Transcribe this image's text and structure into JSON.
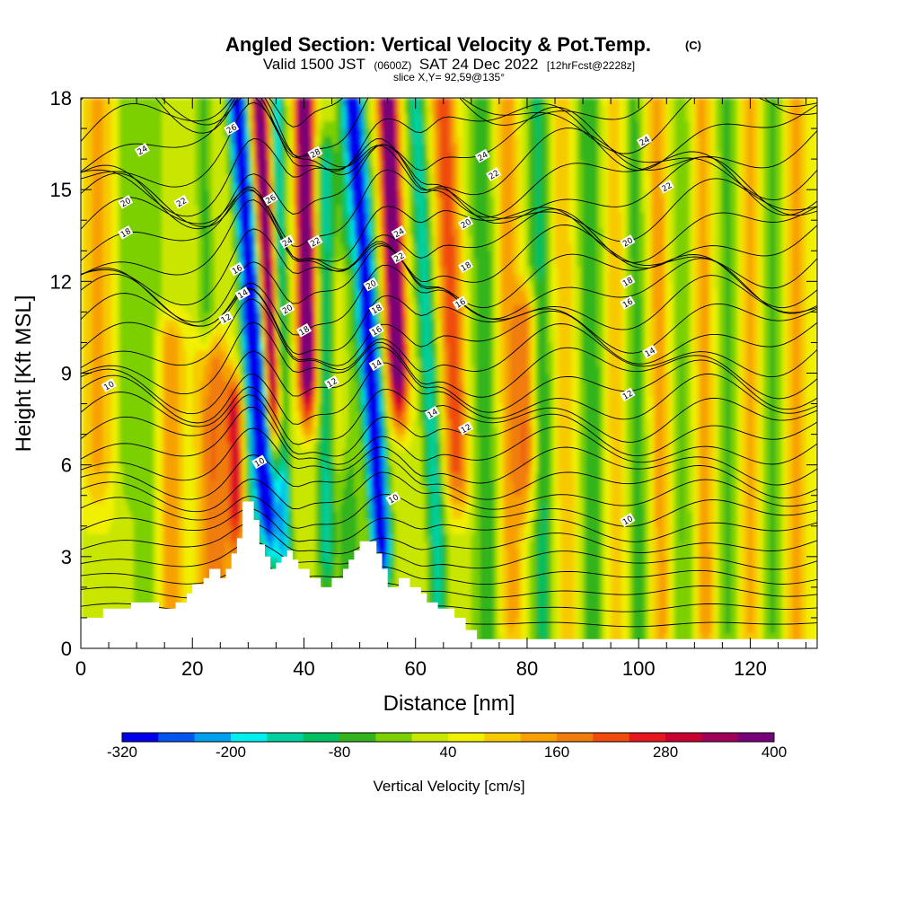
{
  "chart_data": {
    "type": "heatmap",
    "title": "Angled Section: Vertical Velocity & Pot.Temp.",
    "title_units": "(C)",
    "subtitle_parts": [
      "Valid 1500 JST",
      "(0600Z)",
      "SAT 24 Dec 2022",
      "[12hrFcst@2228z]"
    ],
    "slice_label": "slice X,Y= 92,59@135°",
    "xlabel": "Distance [nm]",
    "ylabel": "Height [Kft MSL]",
    "xlim": [
      0,
      132
    ],
    "ylim": [
      0,
      18
    ],
    "x_ticks": [
      0,
      20,
      40,
      60,
      80,
      100,
      120
    ],
    "y_ticks": [
      0,
      3,
      6,
      9,
      12,
      15,
      18
    ],
    "colorbar": {
      "label": "Vertical Velocity [cm/s]",
      "min": -320,
      "max": 400,
      "step": 40,
      "tick_values": [
        -320,
        -200,
        -80,
        40,
        160,
        280,
        400
      ],
      "colors": [
        "#0000ee",
        "#0055ee",
        "#00a0ee",
        "#00eeee",
        "#00d0a0",
        "#00c060",
        "#33b41e",
        "#7cd000",
        "#c8e600",
        "#f0f000",
        "#f7ca00",
        "#f7a000",
        "#f07d0a",
        "#f04b0a",
        "#e6161e",
        "#c80032",
        "#a0005a",
        "#780078"
      ]
    },
    "terrain": [
      [
        0,
        1.0
      ],
      [
        4,
        1.0
      ],
      [
        4,
        1.3
      ],
      [
        9,
        1.3
      ],
      [
        9,
        1.5
      ],
      [
        14,
        1.5
      ],
      [
        14,
        1.3
      ],
      [
        17,
        1.3
      ],
      [
        17,
        1.5
      ],
      [
        19,
        1.5
      ],
      [
        19,
        1.8
      ],
      [
        20,
        1.8
      ],
      [
        20,
        2.1
      ],
      [
        22,
        2.1
      ],
      [
        22,
        2.3
      ],
      [
        23,
        2.3
      ],
      [
        23,
        2.6
      ],
      [
        25,
        2.6
      ],
      [
        25,
        2.3
      ],
      [
        26,
        2.3
      ],
      [
        26,
        2.6
      ],
      [
        27,
        2.6
      ],
      [
        27,
        3.1
      ],
      [
        28,
        3.1
      ],
      [
        28,
        3.6
      ],
      [
        29,
        3.6
      ],
      [
        29,
        4.8
      ],
      [
        31,
        4.8
      ],
      [
        31,
        4.2
      ],
      [
        32,
        4.2
      ],
      [
        32,
        3.4
      ],
      [
        33,
        3.4
      ],
      [
        33,
        3.0
      ],
      [
        34,
        3.0
      ],
      [
        34,
        2.6
      ],
      [
        35,
        2.6
      ],
      [
        35,
        2.8
      ],
      [
        36,
        2.8
      ],
      [
        36,
        3.0
      ],
      [
        37,
        3.0
      ],
      [
        37,
        3.2
      ],
      [
        38,
        3.2
      ],
      [
        38,
        2.9
      ],
      [
        39,
        2.9
      ],
      [
        39,
        2.6
      ],
      [
        41,
        2.6
      ],
      [
        41,
        2.3
      ],
      [
        43,
        2.3
      ],
      [
        43,
        2.0
      ],
      [
        45,
        2.0
      ],
      [
        45,
        2.3
      ],
      [
        47,
        2.3
      ],
      [
        47,
        2.6
      ],
      [
        48,
        2.6
      ],
      [
        48,
        2.9
      ],
      [
        49,
        2.9
      ],
      [
        49,
        3.2
      ],
      [
        50,
        3.2
      ],
      [
        50,
        3.5
      ],
      [
        53,
        3.5
      ],
      [
        53,
        3.1
      ],
      [
        54,
        3.1
      ],
      [
        54,
        2.6
      ],
      [
        55,
        2.6
      ],
      [
        55,
        2.0
      ],
      [
        57,
        2.0
      ],
      [
        57,
        2.3
      ],
      [
        59,
        2.3
      ],
      [
        59,
        2.0
      ],
      [
        61,
        2.0
      ],
      [
        61,
        1.8
      ],
      [
        62,
        1.8
      ],
      [
        62,
        1.5
      ],
      [
        64,
        1.5
      ],
      [
        64,
        1.3
      ],
      [
        67,
        1.3
      ],
      [
        67,
        1.0
      ],
      [
        69,
        1.0
      ],
      [
        69,
        0.6
      ],
      [
        71,
        0.6
      ],
      [
        71,
        0.3
      ],
      [
        132,
        0.3
      ]
    ],
    "theta_labels": [
      {
        "text": "26",
        "x": 27,
        "y": 17.0
      },
      {
        "text": "24",
        "x": 11,
        "y": 16.3
      },
      {
        "text": "20",
        "x": 8,
        "y": 14.6
      },
      {
        "text": "22",
        "x": 18,
        "y": 14.6
      },
      {
        "text": "18",
        "x": 8,
        "y": 13.6
      },
      {
        "text": "16",
        "x": 28,
        "y": 12.4
      },
      {
        "text": "14",
        "x": 29,
        "y": 11.6
      },
      {
        "text": "12",
        "x": 26,
        "y": 10.8
      },
      {
        "text": "10",
        "x": 5,
        "y": 8.6
      },
      {
        "text": "26",
        "x": 34,
        "y": 14.7
      },
      {
        "text": "28",
        "x": 42,
        "y": 16.2
      },
      {
        "text": "24",
        "x": 37,
        "y": 13.3
      },
      {
        "text": "22",
        "x": 42,
        "y": 13.3
      },
      {
        "text": "20",
        "x": 37,
        "y": 11.1
      },
      {
        "text": "18",
        "x": 40,
        "y": 10.4
      },
      {
        "text": "12",
        "x": 45,
        "y": 8.7
      },
      {
        "text": "10",
        "x": 32,
        "y": 6.1
      },
      {
        "text": "24",
        "x": 57,
        "y": 13.6
      },
      {
        "text": "22",
        "x": 57,
        "y": 12.8
      },
      {
        "text": "20",
        "x": 52,
        "y": 11.9
      },
      {
        "text": "18",
        "x": 53,
        "y": 11.1
      },
      {
        "text": "16",
        "x": 53,
        "y": 10.4
      },
      {
        "text": "14",
        "x": 53,
        "y": 9.3
      },
      {
        "text": "10",
        "x": 56,
        "y": 4.9
      },
      {
        "text": "20",
        "x": 69,
        "y": 13.9
      },
      {
        "text": "18",
        "x": 69,
        "y": 12.5
      },
      {
        "text": "16",
        "x": 68,
        "y": 11.3
      },
      {
        "text": "14",
        "x": 63,
        "y": 7.7
      },
      {
        "text": "12",
        "x": 69,
        "y": 7.2
      },
      {
        "text": "24",
        "x": 72,
        "y": 16.1
      },
      {
        "text": "22",
        "x": 74,
        "y": 15.5
      },
      {
        "text": "24",
        "x": 101,
        "y": 16.6
      },
      {
        "text": "22",
        "x": 105,
        "y": 15.1
      },
      {
        "text": "20",
        "x": 98,
        "y": 13.3
      },
      {
        "text": "18",
        "x": 98,
        "y": 12.0
      },
      {
        "text": "16",
        "x": 98,
        "y": 11.3
      },
      {
        "text": "14",
        "x": 102,
        "y": 9.7
      },
      {
        "text": "12",
        "x": 98,
        "y": 8.3
      },
      {
        "text": "10",
        "x": 98,
        "y": 4.2
      }
    ]
  }
}
